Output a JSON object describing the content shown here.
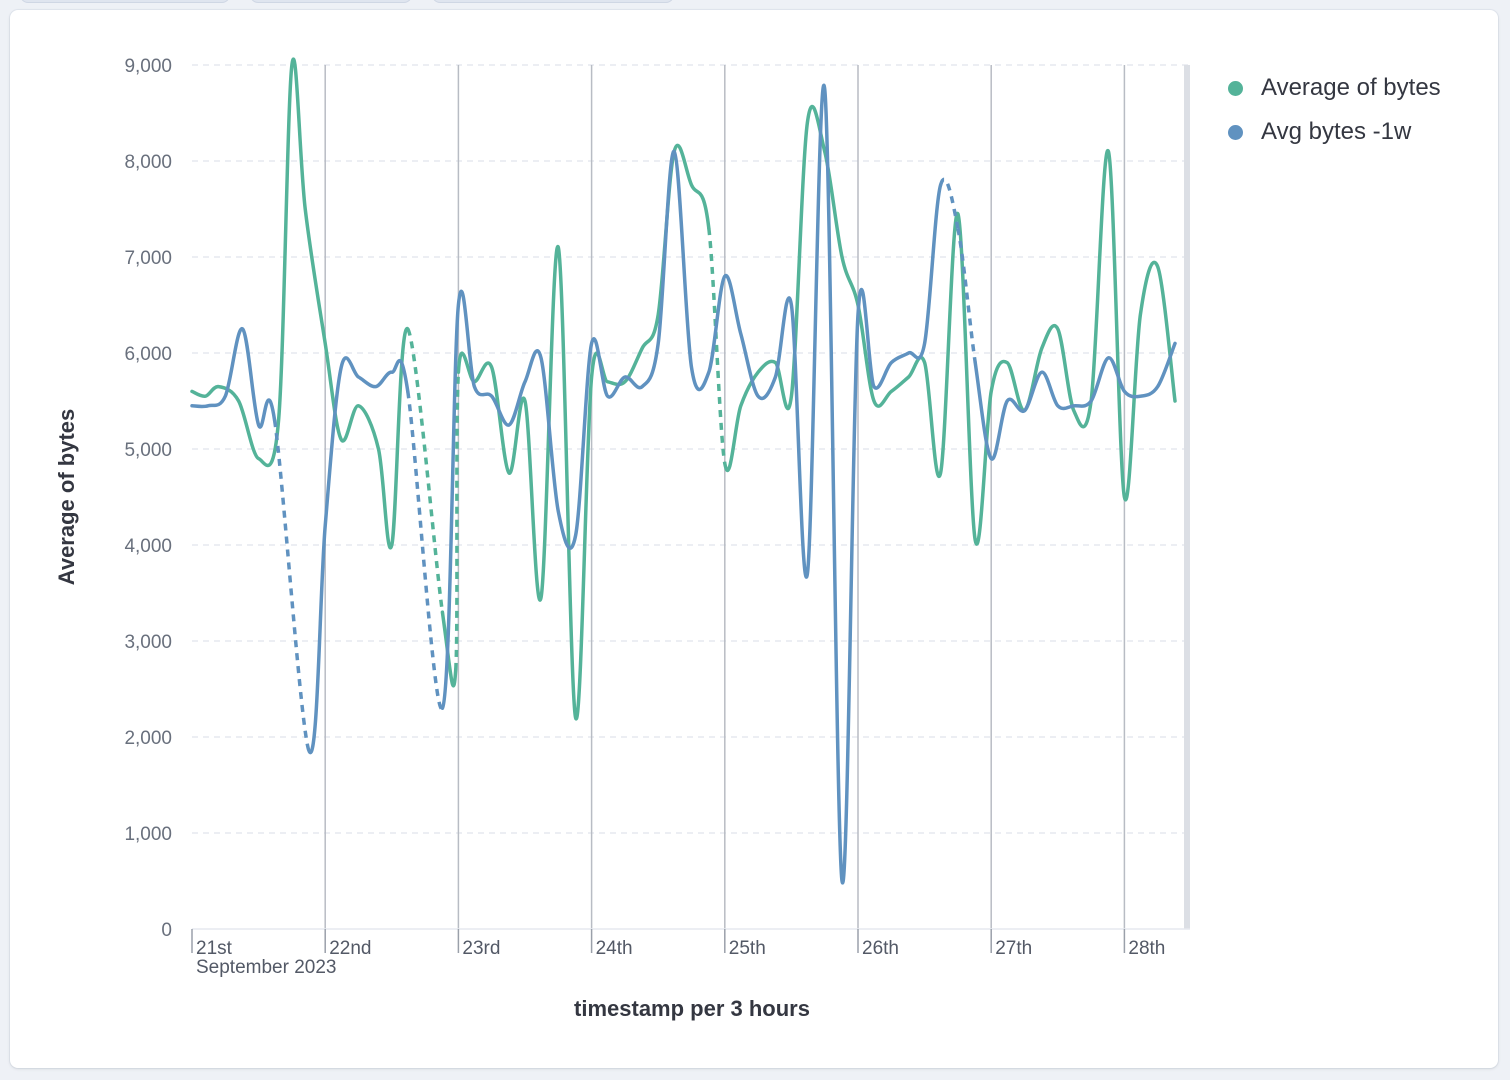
{
  "colors": {
    "series1": "#54b399",
    "series2": "#6092c0"
  },
  "chart_data": {
    "type": "line",
    "xlabel": "timestamp per 3 hours",
    "ylabel": "Average of bytes",
    "ylim": [
      0,
      9000
    ],
    "yticks": [
      "9,000",
      "8,000",
      "7,000",
      "6,000",
      "5,000",
      "4,000",
      "3,000",
      "2,000",
      "1,000",
      "0"
    ],
    "day_ticks": [
      "21st",
      "22nd",
      "23rd",
      "24th",
      "25th",
      "26th",
      "27th",
      "28th"
    ],
    "month_label": "September 2023",
    "grid": true,
    "legend_position": "right",
    "x_unit": "days after 21 Sep 2023 00:00",
    "series": [
      {
        "name": "Average of bytes",
        "color": "#54b399",
        "points": [
          [
            0.0,
            5600
          ],
          [
            0.1,
            5550
          ],
          [
            0.2,
            5650
          ],
          [
            0.35,
            5500
          ],
          [
            0.5,
            4900
          ],
          [
            0.65,
            5300
          ],
          [
            0.75,
            9000
          ],
          [
            0.85,
            7500
          ],
          [
            1.0,
            6100
          ],
          [
            1.12,
            5100
          ],
          [
            1.25,
            5450
          ],
          [
            1.4,
            5000
          ],
          [
            1.5,
            4000
          ],
          [
            1.62,
            6250
          ],
          [
            1.88,
            3300
          ],
          [
            1.98,
            2700
          ],
          [
            2.0,
            5800
          ],
          [
            2.12,
            5700
          ],
          [
            2.25,
            5850
          ],
          [
            2.38,
            4750
          ],
          [
            2.5,
            5500
          ],
          [
            2.62,
            3450
          ],
          [
            2.75,
            7100
          ],
          [
            2.88,
            2200
          ],
          [
            3.0,
            5750
          ],
          [
            3.12,
            5700
          ],
          [
            3.25,
            5700
          ],
          [
            3.38,
            6050
          ],
          [
            3.5,
            6400
          ],
          [
            3.62,
            8100
          ],
          [
            3.75,
            7750
          ],
          [
            3.88,
            7300
          ],
          [
            4.0,
            4850
          ],
          [
            4.12,
            5450
          ],
          [
            4.25,
            5800
          ],
          [
            4.38,
            5900
          ],
          [
            4.5,
            5550
          ],
          [
            4.62,
            8400
          ],
          [
            4.75,
            8100
          ],
          [
            4.88,
            7000
          ],
          [
            5.0,
            6500
          ],
          [
            5.12,
            5500
          ],
          [
            5.25,
            5600
          ],
          [
            5.38,
            5750
          ],
          [
            5.5,
            5900
          ],
          [
            5.62,
            4750
          ],
          [
            5.75,
            7450
          ],
          [
            5.88,
            4050
          ],
          [
            6.0,
            5600
          ],
          [
            6.12,
            5900
          ],
          [
            6.25,
            5400
          ],
          [
            6.38,
            6050
          ],
          [
            6.5,
            6250
          ],
          [
            6.62,
            5400
          ],
          [
            6.75,
            5500
          ],
          [
            6.88,
            8100
          ],
          [
            7.0,
            4500
          ],
          [
            7.12,
            6400
          ],
          [
            7.25,
            6900
          ],
          [
            7.38,
            5500
          ]
        ],
        "dashed_segments": [
          [
            13,
            14
          ],
          [
            15,
            16
          ],
          [
            31,
            32
          ]
        ]
      },
      {
        "name": "Avg bytes -1w",
        "color": "#6092c0",
        "points": [
          [
            0.0,
            5450
          ],
          [
            0.12,
            5450
          ],
          [
            0.25,
            5550
          ],
          [
            0.38,
            6250
          ],
          [
            0.5,
            5250
          ],
          [
            0.62,
            5300
          ],
          [
            0.88,
            1850
          ],
          [
            1.0,
            4200
          ],
          [
            1.12,
            5850
          ],
          [
            1.25,
            5750
          ],
          [
            1.38,
            5650
          ],
          [
            1.5,
            5800
          ],
          [
            1.62,
            5600
          ],
          [
            1.88,
            2300
          ],
          [
            2.0,
            6500
          ],
          [
            2.12,
            5650
          ],
          [
            2.25,
            5550
          ],
          [
            2.38,
            5250
          ],
          [
            2.5,
            5700
          ],
          [
            2.62,
            5950
          ],
          [
            2.75,
            4350
          ],
          [
            2.88,
            4100
          ],
          [
            3.0,
            6100
          ],
          [
            3.12,
            5550
          ],
          [
            3.25,
            5750
          ],
          [
            3.38,
            5650
          ],
          [
            3.5,
            6100
          ],
          [
            3.62,
            8100
          ],
          [
            3.75,
            5850
          ],
          [
            3.88,
            5800
          ],
          [
            4.0,
            6800
          ],
          [
            4.12,
            6200
          ],
          [
            4.25,
            5550
          ],
          [
            4.38,
            5750
          ],
          [
            4.5,
            6500
          ],
          [
            4.62,
            3700
          ],
          [
            4.75,
            8750
          ],
          [
            4.88,
            500
          ],
          [
            5.0,
            6400
          ],
          [
            5.12,
            5650
          ],
          [
            5.25,
            5900
          ],
          [
            5.38,
            6000
          ],
          [
            5.5,
            6100
          ],
          [
            5.62,
            7750
          ],
          [
            5.75,
            7300
          ],
          [
            5.88,
            5900
          ],
          [
            6.0,
            4900
          ],
          [
            6.12,
            5500
          ],
          [
            6.25,
            5400
          ],
          [
            6.38,
            5800
          ],
          [
            6.5,
            5450
          ],
          [
            6.62,
            5450
          ],
          [
            6.75,
            5500
          ],
          [
            6.88,
            5950
          ],
          [
            7.0,
            5600
          ],
          [
            7.12,
            5550
          ],
          [
            7.25,
            5650
          ],
          [
            7.38,
            6100
          ]
        ],
        "dashed_segments": [
          [
            5,
            6
          ],
          [
            12,
            13
          ],
          [
            43,
            44
          ],
          [
            44,
            45
          ]
        ]
      }
    ]
  }
}
